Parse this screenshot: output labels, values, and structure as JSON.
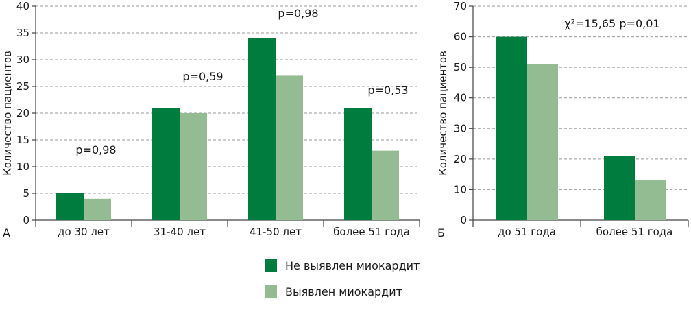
{
  "colors": {
    "dark": "#007c3e",
    "light": "#93bc93"
  },
  "legend": [
    {
      "label": "Не выявлен миокардит",
      "color": "#007c3e"
    },
    {
      "label": "Выявлен миокардит",
      "color": "#93bc93"
    }
  ],
  "chart_data": [
    {
      "type": "bar",
      "panel_label": "А",
      "ylabel": "Количество пациентов",
      "ylim": [
        0,
        40
      ],
      "yticks": [
        0,
        5,
        10,
        15,
        20,
        25,
        30,
        35,
        40
      ],
      "grid": true,
      "categories": [
        "до 30 лет",
        "31-40 лет",
        "41-50 лет",
        "более 51 года"
      ],
      "series": [
        {
          "name": "Не выявлен миокардит",
          "values": [
            5,
            21,
            34,
            21
          ]
        },
        {
          "name": "Выявлен миокардит",
          "values": [
            4,
            20,
            27,
            13
          ]
        }
      ],
      "annotations": [
        "p=0,98",
        "p=0,59",
        "p=0,98",
        "p=0,53"
      ]
    },
    {
      "type": "bar",
      "panel_label": "Б",
      "ylabel": "Количество пациентов",
      "ylim": [
        0,
        70
      ],
      "yticks": [
        0,
        10,
        20,
        30,
        40,
        50,
        60,
        70
      ],
      "grid": true,
      "categories": [
        "до 51 года",
        "более 51 года"
      ],
      "series": [
        {
          "name": "Не выявлен миокардит",
          "values": [
            60,
            21
          ]
        },
        {
          "name": "Выявлен миокардит",
          "values": [
            51,
            13
          ]
        }
      ],
      "annotations": [
        "χ²=15,65 p=0,01"
      ]
    }
  ]
}
